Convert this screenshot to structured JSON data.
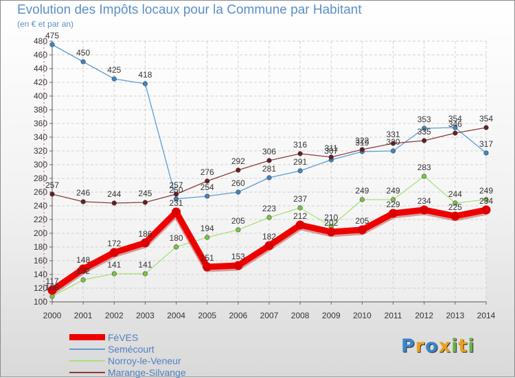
{
  "title": "Evolution des Impôts locaux pour la Commune par Habitant",
  "subtitle": "(en € et par an)",
  "logo": {
    "letters": [
      "P",
      "r",
      "o",
      "x",
      "i",
      "t",
      "i"
    ],
    "colors": [
      "#3a86c8",
      "#e8a020",
      "#3a86c8",
      "#e8a020",
      "#6ab04c",
      "#e8a020",
      "#6ab04c"
    ]
  },
  "chart_data": {
    "type": "line",
    "x": [
      2000,
      2001,
      2002,
      2003,
      2004,
      2005,
      2006,
      2007,
      2008,
      2009,
      2010,
      2011,
      2012,
      2013,
      2014
    ],
    "ylim": [
      100,
      480
    ],
    "yticks": [
      100,
      120,
      140,
      160,
      180,
      200,
      220,
      240,
      260,
      280,
      300,
      320,
      340,
      360,
      380,
      400,
      420,
      440,
      460,
      480
    ],
    "grid": true,
    "legend_position": "bottom-left",
    "series": [
      {
        "name": "Semécourt",
        "color": "#5b9bd5",
        "dot": "#3d86c6",
        "values": [
          475,
          450,
          425,
          418,
          250,
          254,
          260,
          281,
          291,
          307,
          319,
          320,
          353,
          354,
          317
        ],
        "labels": [
          "475",
          "450",
          "425",
          "418",
          "250",
          "254",
          "260",
          "281",
          "291",
          "307",
          "319",
          "320",
          "353",
          "354",
          "317"
        ]
      },
      {
        "name": "Norroy-le-Veneur",
        "color": "#a8e07a",
        "dot": "#7cc442",
        "values": [
          108,
          132,
          141,
          141,
          180,
          194,
          205,
          223,
          237,
          210,
          249,
          249,
          283,
          244,
          249
        ],
        "labels": [
          "108",
          "132",
          "141",
          "141",
          "180",
          "194",
          "205",
          "223",
          "237",
          "210",
          "249",
          "249",
          "283",
          "244",
          "249"
        ]
      },
      {
        "name": "Marange-Silvange",
        "color": "#8b3a3a",
        "dot": "#6b1c1c",
        "values": [
          257,
          246,
          244,
          245,
          257,
          276,
          292,
          306,
          316,
          311,
          322,
          331,
          335,
          346,
          354
        ],
        "labels": [
          "257",
          "246",
          "244",
          "245",
          "257",
          "276",
          "292",
          "306",
          "316",
          "311",
          "322",
          "331",
          "335",
          "346",
          "354"
        ]
      },
      {
        "name": "FèVES",
        "color": "#ee0000",
        "dot": "#dd0000",
        "values": [
          117,
          148,
          172,
          186,
          231,
          151,
          153,
          182,
          212,
          202,
          205,
          229,
          234,
          225,
          234
        ],
        "labels": [
          "117",
          "148",
          "172",
          "186",
          "231",
          "151",
          "153",
          "182",
          "212",
          "202",
          "205",
          "229",
          "234",
          "225",
          "234"
        ]
      }
    ],
    "legend": [
      {
        "name": "FèVES",
        "color": "#ee0000",
        "thick": true
      },
      {
        "name": "Semécourt",
        "color": "#5b9bd5",
        "thick": false
      },
      {
        "name": "Norroy-le-Veneur",
        "color": "#a8e07a",
        "thick": false
      },
      {
        "name": "Marange-Silvange",
        "color": "#8b3a3a",
        "thick": false
      }
    ]
  }
}
